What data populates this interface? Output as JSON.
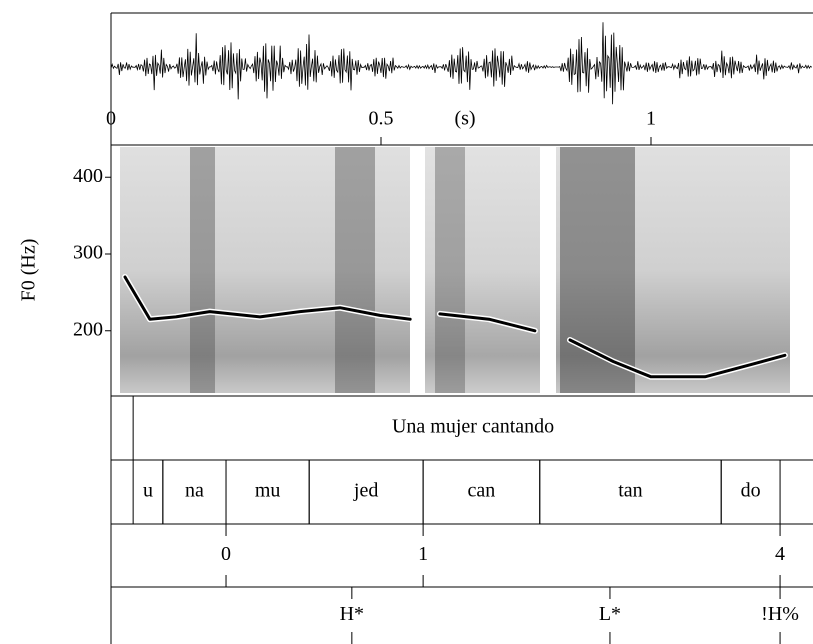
{
  "chart_data": {
    "type": "line",
    "ylabel": "F0 (Hz)",
    "xlabel": "(s)",
    "xlim": [
      0,
      1.3
    ],
    "xticks": [
      0,
      0.5,
      1
    ],
    "ylim": [
      115,
      442
    ],
    "yticks": [
      200,
      300,
      400
    ],
    "color": "#000000",
    "x": [
      0.026,
      0.072,
      0.12,
      0.183,
      0.276,
      0.35,
      0.424,
      0.498,
      0.554,
      null,
      0.609,
      0.7,
      0.785,
      null,
      0.85,
      0.93,
      1.0,
      1.1,
      1.18,
      1.248
    ],
    "values": [
      270,
      215,
      218,
      225,
      218,
      225,
      230,
      220,
      215,
      null,
      222,
      215,
      200,
      null,
      188,
      160,
      140,
      140,
      155,
      168
    ],
    "tiers": [
      {
        "intervals": [
          {
            "start": 0.041,
            "end": 1.3,
            "label": "Una mujer cantando"
          }
        ]
      },
      {
        "intervals": [
          {
            "start": 0.041,
            "end": 0.096,
            "label": "u"
          },
          {
            "start": 0.096,
            "end": 0.213,
            "label": "na"
          },
          {
            "start": 0.213,
            "end": 0.367,
            "label": "mu"
          },
          {
            "start": 0.367,
            "end": 0.578,
            "label": "jed"
          },
          {
            "start": 0.578,
            "end": 0.794,
            "label": "can"
          },
          {
            "start": 0.794,
            "end": 1.13,
            "label": "tan"
          },
          {
            "start": 1.13,
            "end": 1.239,
            "label": "do"
          }
        ]
      },
      {
        "points": [
          {
            "time": 0.213,
            "label": "0"
          },
          {
            "time": 0.578,
            "label": "1"
          },
          {
            "time": 1.239,
            "label": "4"
          }
        ]
      },
      {
        "points": [
          {
            "time": 0.446,
            "label": "H*"
          },
          {
            "time": 0.924,
            "label": "L*"
          },
          {
            "time": 1.239,
            "label": "!H%"
          }
        ]
      }
    ]
  }
}
